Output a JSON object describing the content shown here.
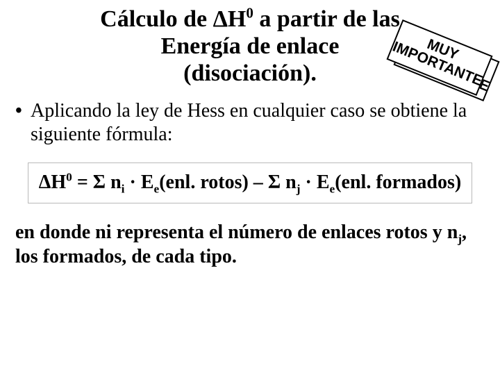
{
  "title": {
    "line1_prefix": "Cálculo de ",
    "line1_delta": "Δ",
    "line1_H": "H",
    "line1_exp": "0",
    "line1_suffix": " a partir de las",
    "line2": "Energía de enlace",
    "line3": "(disociación)."
  },
  "callout": {
    "line1": "MUY",
    "line2": "IMPORTANTE"
  },
  "bullet": {
    "text": "Aplicando la ley de Hess en cualquier caso se obtiene la siguiente fórmula:"
  },
  "formula": {
    "lhs_delta": "Δ",
    "lhs_H": "H",
    "lhs_exp": "0",
    "equals": " = ",
    "sigma1": "Σ",
    "term1_n": " n",
    "term1_sub": "i",
    "term1_mid": " · E",
    "term1_esub": "e",
    "term1_paren": "(enl. rotos) – ",
    "sigma2": "Σ",
    "term2_n": " n",
    "term2_sub": "j",
    "term2_mid": " · E",
    "term2_esub": "e",
    "term2_paren": "(enl. formados)"
  },
  "footer": {
    "part1": "en donde ni  representa el número de enlaces rotos y n",
    "sub_j": "j",
    "part2": ", los formados, de cada tipo."
  },
  "colors": {
    "background": "#ffffff",
    "text": "#000000",
    "formula_border": "#b9b9b9",
    "callout_border": "#000000"
  }
}
